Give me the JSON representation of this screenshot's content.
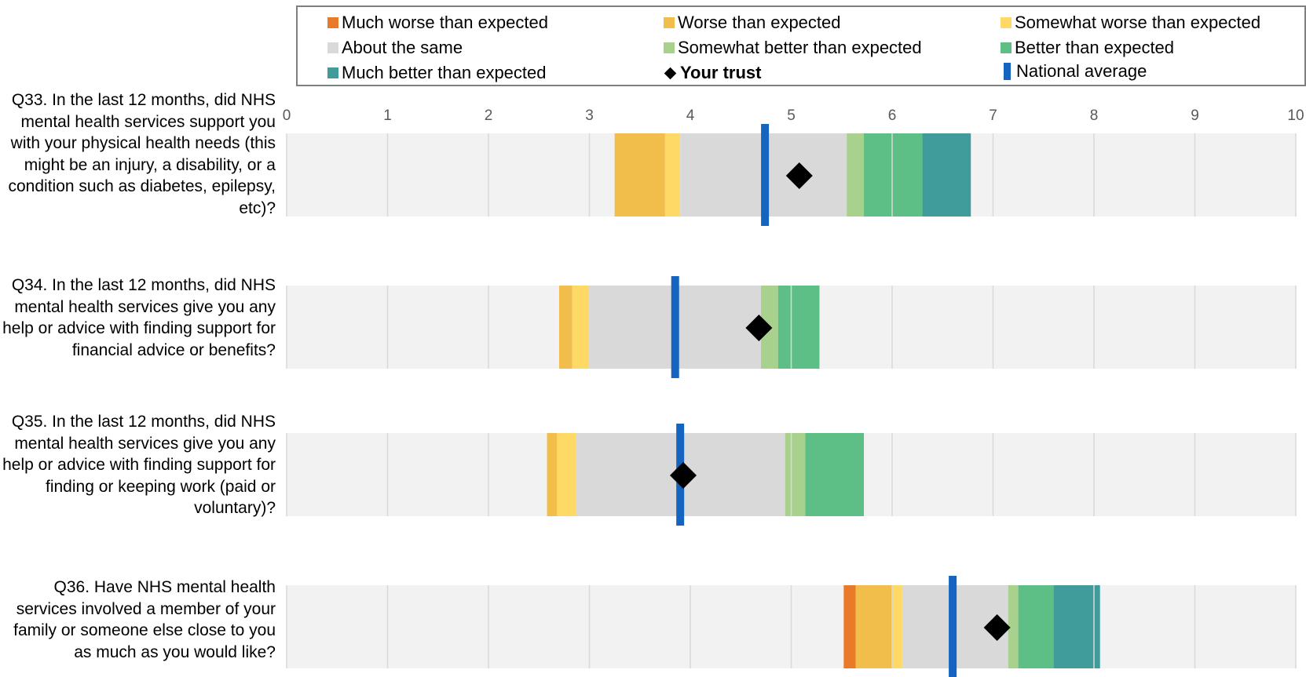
{
  "legend": {
    "items": [
      {
        "label": "Much worse than expected",
        "color": "#e87a2a",
        "kind": "swatch"
      },
      {
        "label": "Worse than expected",
        "color": "#f2be4b",
        "kind": "swatch"
      },
      {
        "label": "Somewhat worse than expected",
        "color": "#ffd966",
        "kind": "swatch"
      },
      {
        "label": "About the same",
        "color": "#d9d9d9",
        "kind": "swatch"
      },
      {
        "label": "Somewhat better than expected",
        "color": "#a9d18e",
        "kind": "swatch"
      },
      {
        "label": "Better than expected",
        "color": "#5dbf85",
        "kind": "swatch"
      },
      {
        "label": "Much better than expected",
        "color": "#3f9c9a",
        "kind": "swatch"
      },
      {
        "label": "Your trust",
        "color": "#000000",
        "kind": "diamond"
      },
      {
        "label": "National average",
        "color": "#1565c0",
        "kind": "bar"
      }
    ]
  },
  "chart_data": {
    "type": "bar",
    "orientation": "horizontal",
    "xlim": [
      0,
      10
    ],
    "ticks": [
      "0",
      "1",
      "2",
      "3",
      "4",
      "5",
      "6",
      "7",
      "8",
      "9",
      "10"
    ],
    "grid": true,
    "legend_position": "top",
    "background_color": "#f2f2f2",
    "questions": [
      {
        "label": "Q33. In the last 12 months, did NHS mental health services support you with your physical health needs (this might be an injury, a disability, or a condition such as diabetes, epilepsy, etc)?",
        "bands": [
          {
            "band": "Worse than expected",
            "from": 3.25,
            "to": 3.75
          },
          {
            "band": "Somewhat worse than expected",
            "from": 3.75,
            "to": 3.9
          },
          {
            "band": "About the same",
            "from": 3.9,
            "to": 5.55
          },
          {
            "band": "Somewhat better than expected",
            "from": 5.55,
            "to": 5.72
          },
          {
            "band": "Better than expected",
            "from": 5.72,
            "to": 6.3
          },
          {
            "band": "Much better than expected",
            "from": 6.3,
            "to": 6.78
          }
        ],
        "your_trust": 5.08,
        "national_average": 4.74
      },
      {
        "label": "Q34. In the last 12 months, did NHS mental health services give you any help or advice with finding support for financial advice or benefits?",
        "bands": [
          {
            "band": "Worse than expected",
            "from": 2.7,
            "to": 2.83
          },
          {
            "band": "Somewhat worse than expected",
            "from": 2.83,
            "to": 3.0
          },
          {
            "band": "About the same",
            "from": 3.0,
            "to": 4.7
          },
          {
            "band": "Somewhat better than expected",
            "from": 4.7,
            "to": 4.87
          },
          {
            "band": "Better than expected",
            "from": 4.87,
            "to": 5.28
          }
        ],
        "your_trust": 4.68,
        "national_average": 3.85
      },
      {
        "label": "Q35. In the last 12 months, did NHS mental health services give you any help or advice with finding support for finding or keeping work (paid or voluntary)?",
        "bands": [
          {
            "band": "Worse than expected",
            "from": 2.58,
            "to": 2.68
          },
          {
            "band": "Somewhat worse than expected",
            "from": 2.68,
            "to": 2.87
          },
          {
            "band": "About the same",
            "from": 2.87,
            "to": 4.94
          },
          {
            "band": "Somewhat better than expected",
            "from": 4.94,
            "to": 5.14
          },
          {
            "band": "Better than expected",
            "from": 5.14,
            "to": 5.72
          }
        ],
        "your_trust": 3.93,
        "national_average": 3.9
      },
      {
        "label": "Q36. Have NHS mental health services involved a member of your family or someone else close to you as much as you would like?",
        "bands": [
          {
            "band": "Much worse than expected",
            "from": 5.52,
            "to": 5.64
          },
          {
            "band": "Worse than expected",
            "from": 5.64,
            "to": 6.0
          },
          {
            "band": "Somewhat worse than expected",
            "from": 6.0,
            "to": 6.1
          },
          {
            "band": "About the same",
            "from": 6.1,
            "to": 7.15
          },
          {
            "band": "Somewhat better than expected",
            "from": 7.15,
            "to": 7.25
          },
          {
            "band": "Better than expected",
            "from": 7.25,
            "to": 7.6
          },
          {
            "band": "Much better than expected",
            "from": 7.6,
            "to": 8.06
          }
        ],
        "your_trust": 7.04,
        "national_average": 6.6
      }
    ]
  }
}
